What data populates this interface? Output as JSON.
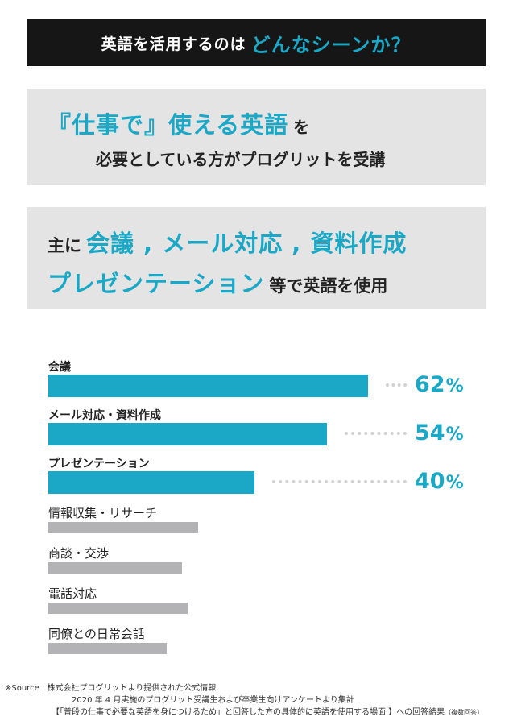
{
  "banner": {
    "prefix": "英語を活用するのは",
    "highlight": "どんなシーンか？"
  },
  "box1": {
    "line1_big": "『仕事で』使える英語",
    "line1_small": "を",
    "line2": "必要としている方がプログリットを受講"
  },
  "box2": {
    "line1_small": "主に",
    "line1_big": "会議 , メール対応 , 資料作成",
    "line2_big": "プレゼンテーション",
    "line2_small": "等で英語を使用"
  },
  "colors": {
    "accent": "#1aa8c6",
    "dark": "#161616",
    "gray_bar": "#b3b3b5",
    "box_bg": "#e4e4e4"
  },
  "chart_data": {
    "type": "bar",
    "orientation": "horizontal",
    "categories": [
      "会議",
      "メール対応・資料作成",
      "プレゼンテーション",
      "情報収集・リサーチ",
      "商談・交渉",
      "電話対応",
      "同僚との日常会話"
    ],
    "values": [
      62,
      54,
      40,
      29,
      26,
      27,
      23
    ],
    "labels": [
      {
        "value": "62",
        "unit": "%"
      },
      {
        "value": "54",
        "unit": "%"
      },
      {
        "value": "40",
        "unit": "%"
      }
    ],
    "highlighted": [
      true,
      true,
      true,
      false,
      false,
      false,
      false
    ],
    "xlim": [
      0,
      100
    ]
  },
  "source": {
    "line1": "※Source : 株式会社プログリットより提供された公式情報",
    "line2": "2020 年 4 月実施のプログリット受講生および卒業生向けアンケートより集計",
    "line3": "【「普段の仕事で必要な英語を身につけるため」と回答した方の具体的に英語を使用する場面 】への回答結果",
    "line3_tiny": "（複数回答）"
  }
}
